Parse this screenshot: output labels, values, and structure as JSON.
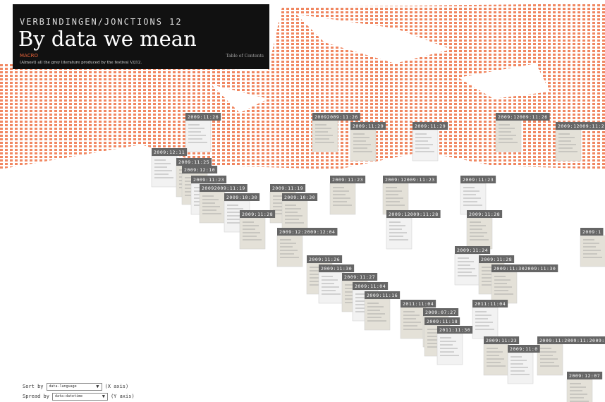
{
  "header": {
    "kicker": "VERBINDINGEN/JONCTIONS 12",
    "title": "By data we mean",
    "section": "MACRO",
    "toc": "Table of Contents",
    "description": "(Almost) all the grey literature produced by the festival V/J12."
  },
  "date_labels": [
    "2009:11:26",
    "20092009:11:26",
    "2009:11:29",
    "2009:11:29",
    "2009:12009:11:26",
    "2009:12009:11:2",
    "2009:12:11",
    "2009:11:25",
    "2009:12:10",
    "2009:11:23",
    "2009:11:23",
    "2009:12009:11:23",
    "2009:11:23",
    "20092009:11:19",
    "2009:11:19",
    "2009:10:30",
    "2009:10:30",
    "2009:11:28",
    "2009:12009:11:28",
    "2009:11:28",
    "2009:12:2009:12:04",
    "2009:11:24",
    "2009:11:26",
    "2009:11:28",
    "2009:11:30",
    "2009:11:302009:11:30",
    "2009:11:27",
    "2009:11:04",
    "2009:11:16",
    "2011:11:04",
    "2011:11:04",
    "2009:07:27",
    "2009:11:18",
    "2011:11:30",
    "2009:11:23",
    "2009:11:2009:11:2009:1",
    "2009:11:0",
    "2009:12:07",
    "2009:1"
  ],
  "controls": {
    "sort_label": "Sort by",
    "sort_value": "data-language",
    "sort_axis": "(X axis)",
    "spread_label": "Spread by",
    "spread_value": "data-datetime",
    "spread_axis": "(Y axis)"
  }
}
